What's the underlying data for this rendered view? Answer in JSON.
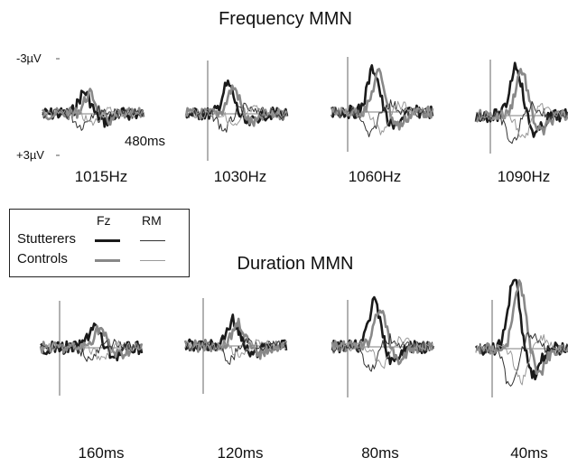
{
  "figure": {
    "frequency_title": "Frequency MMN",
    "duration_title": "Duration MMN",
    "scale_top": "-3µV",
    "scale_bottom": "+3µV",
    "latency_label": "480ms"
  },
  "legend": {
    "fz_header": "Fz",
    "rm_header": "RM",
    "stutterers_label": "Stutterers",
    "controls_label": "Controls"
  },
  "colors": {
    "stutterers_fz": "#1a1a1a",
    "controls_fz": "#888888",
    "stutterers_rm": "#333333",
    "controls_rm": "#9a9a9a",
    "axis": "#555555"
  },
  "chart_data": [
    {
      "type": "line",
      "title": "Frequency MMN",
      "y_polarity": "negative up",
      "ylim_uV": [
        3,
        -3
      ],
      "xlim_ms": [
        -50,
        480
      ],
      "conditions": [
        {
          "label": "1015Hz",
          "peak_amplitude_uV": 1.5,
          "peak_latency_ms": 170
        },
        {
          "label": "1030Hz",
          "peak_amplitude_uV": 2.0,
          "peak_latency_ms": 170
        },
        {
          "label": "1060Hz",
          "peak_amplitude_uV": 3.0,
          "peak_latency_ms": 170
        },
        {
          "label": "1090Hz",
          "peak_amplitude_uV": 3.5,
          "peak_latency_ms": 160
        }
      ],
      "series": [
        {
          "name": "Stutterers Fz"
        },
        {
          "name": "Controls Fz"
        },
        {
          "name": "Stutterers RM"
        },
        {
          "name": "Controls RM"
        }
      ]
    },
    {
      "type": "line",
      "title": "Duration MMN",
      "y_polarity": "negative up",
      "ylim_uV": [
        3,
        -3
      ],
      "xlim_ms": [
        -50,
        480
      ],
      "conditions": [
        {
          "label": "160ms",
          "peak_amplitude_uV": 1.5,
          "peak_latency_ms": 230
        },
        {
          "label": "120ms",
          "peak_amplitude_uV": 1.8,
          "peak_latency_ms": 200
        },
        {
          "label": "80ms",
          "peak_amplitude_uV": 3.0,
          "peak_latency_ms": 170
        },
        {
          "label": "40ms",
          "peak_amplitude_uV": 5.0,
          "peak_latency_ms": 150
        }
      ],
      "series": [
        {
          "name": "Stutterers Fz"
        },
        {
          "name": "Controls Fz"
        },
        {
          "name": "Stutterers RM"
        },
        {
          "name": "Controls RM"
        }
      ]
    }
  ]
}
